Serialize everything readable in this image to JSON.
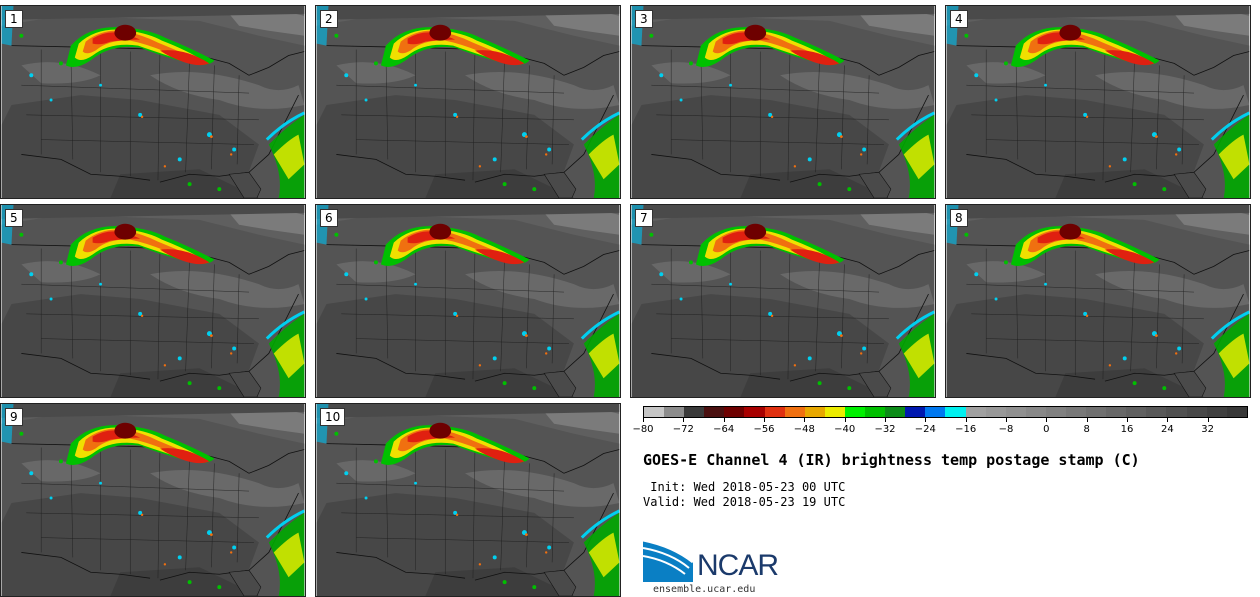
{
  "panels": [
    {
      "label": "1"
    },
    {
      "label": "2"
    },
    {
      "label": "3"
    },
    {
      "label": "4"
    },
    {
      "label": "5"
    },
    {
      "label": "6"
    },
    {
      "label": "7"
    },
    {
      "label": "8"
    },
    {
      "label": "9"
    },
    {
      "label": "10"
    }
  ],
  "colorbar": {
    "colors": [
      "#c6c6c6",
      "#8c8c8c",
      "#3a3a3a",
      "#4a1010",
      "#6e0000",
      "#a80000",
      "#e03010",
      "#f07010",
      "#e8a800",
      "#ecec00",
      "#00f000",
      "#00c000",
      "#0c8c18",
      "#0018b0",
      "#0078f0",
      "#00f0f0",
      "#a0a0a0",
      "#989898",
      "#909090",
      "#888888",
      "#808080",
      "#787878",
      "#707070",
      "#686868",
      "#606060",
      "#585858",
      "#505050",
      "#484848",
      "#404040",
      "#383838"
    ],
    "ticks": [
      "−80",
      "−72",
      "−64",
      "−56",
      "−48",
      "−40",
      "−32",
      "−24",
      "−16",
      "−8",
      "0",
      "8",
      "16",
      "24",
      "32"
    ]
  },
  "title": "GOES-E Channel 4 (IR) brightness temp postage stamp (C)",
  "init": " Init: Wed 2018-05-23 00 UTC",
  "valid": "Valid: Wed 2018-05-23 19 UTC",
  "logo": {
    "name": "NCAR",
    "url": "ensemble.ucar.edu"
  }
}
